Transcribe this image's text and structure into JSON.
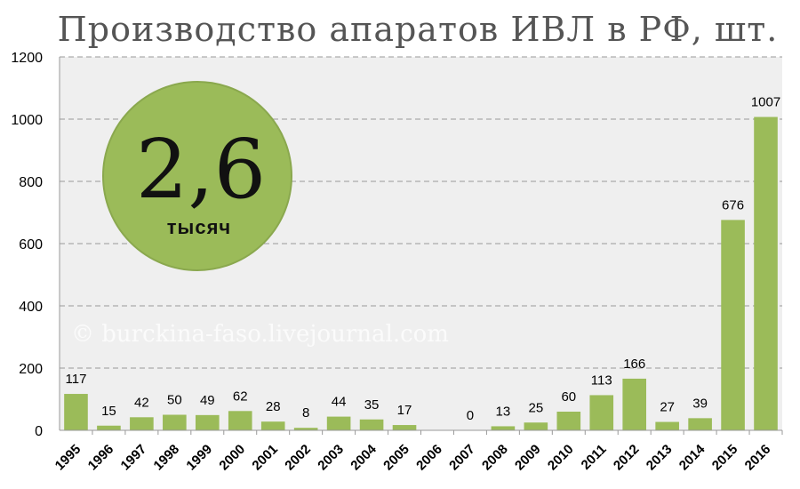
{
  "chart_data": {
    "type": "bar",
    "title": "Производство апаратов ИВЛ в РФ, шт.",
    "categories": [
      "1995",
      "1996",
      "1997",
      "1998",
      "1999",
      "2000",
      "2001",
      "2002",
      "2003",
      "2004",
      "2005",
      "2006",
      "2007",
      "2008",
      "2009",
      "2010",
      "2011",
      "2012",
      "2013",
      "2014",
      "2015",
      "2016"
    ],
    "values": [
      117,
      15,
      42,
      50,
      49,
      62,
      28,
      8,
      44,
      35,
      17,
      null,
      0,
      13,
      25,
      60,
      113,
      166,
      27,
      39,
      676,
      1007
    ],
    "data_labels": [
      "117",
      "15",
      "42",
      "50",
      "49",
      "62",
      "28",
      "8",
      "44",
      "35",
      "17",
      "",
      "0",
      "13",
      "25",
      "60",
      "113",
      "166",
      "27",
      "39",
      "676",
      "1007"
    ],
    "ylim": [
      0,
      1200
    ],
    "yticks": [
      0,
      200,
      400,
      600,
      800,
      1000,
      1200
    ],
    "grid": true,
    "bar_color": "#9BBB59",
    "plot_background": "#EFEFEF",
    "callout": {
      "value": "2,6",
      "unit": "тысяч",
      "color": "#9BBB59"
    },
    "watermark": "© burckina-faso.livejournal.com"
  }
}
